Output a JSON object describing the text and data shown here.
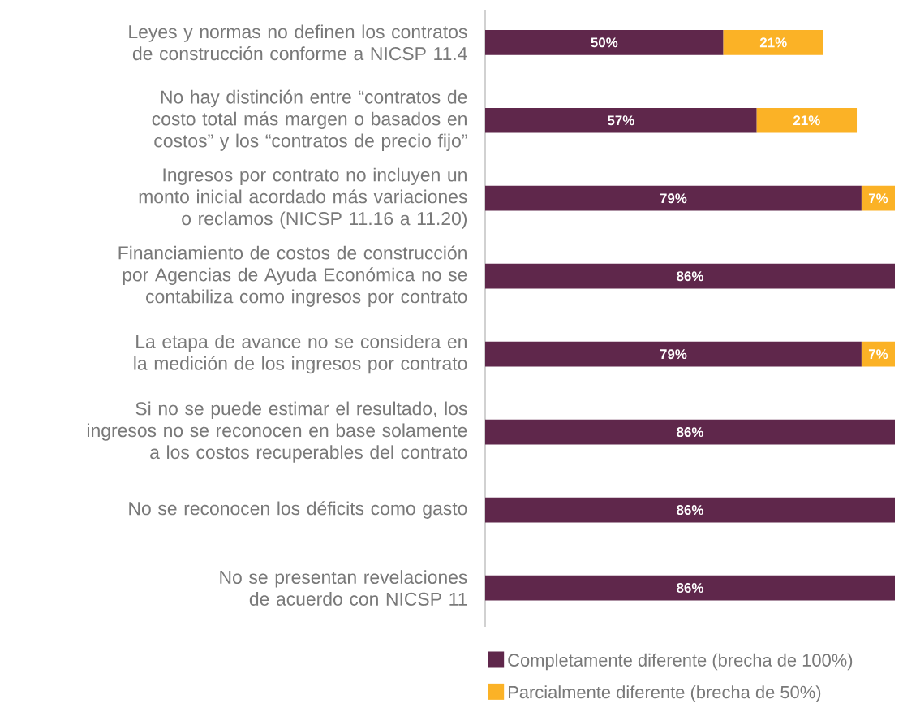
{
  "chart_data": {
    "type": "bar",
    "orientation": "horizontal",
    "stacked": true,
    "categories": [
      "Leyes y normas no definen los contratos de construcción conforme a NICSP 11.4",
      "No hay distinción entre “contratos de costo total más margen o basados en costos” y los “contratos de precio fijo”",
      "Ingresos por contrato no incluyen un monto inicial acordado más variaciones o reclamos (NICSP 11.16 a 11.20)",
      "Financiamiento de costos de construcción por Agencias de Ayuda Económica no se contabiliza como ingresos por contrato",
      "La etapa de avance no se considera en la medición de los ingresos por contrato",
      "Si no se puede estimar el resultado, los ingresos no se reconocen en base solamente a los costos recuperables del contrato",
      "No se reconocen los déficits como gasto",
      "No se presentan revelaciones de acuerdo con NICSP 11"
    ],
    "series": [
      {
        "name": "Completamente diferente (brecha de 100%)",
        "color": "#5f274b",
        "values": [
          50,
          57,
          79,
          86,
          79,
          86,
          86,
          86
        ],
        "value_labels": [
          "50%",
          "57%",
          "79%",
          "86%",
          "79%",
          "86%",
          "86%",
          "86%"
        ]
      },
      {
        "name": "Parcialmente diferente (brecha de 50%)",
        "color": "#fbb226",
        "values": [
          21,
          21,
          7,
          null,
          7,
          null,
          null,
          null
        ],
        "value_labels": [
          "21%",
          "21%",
          "7%",
          null,
          "7%",
          null,
          null,
          null
        ]
      }
    ],
    "legend": "bottom"
  }
}
